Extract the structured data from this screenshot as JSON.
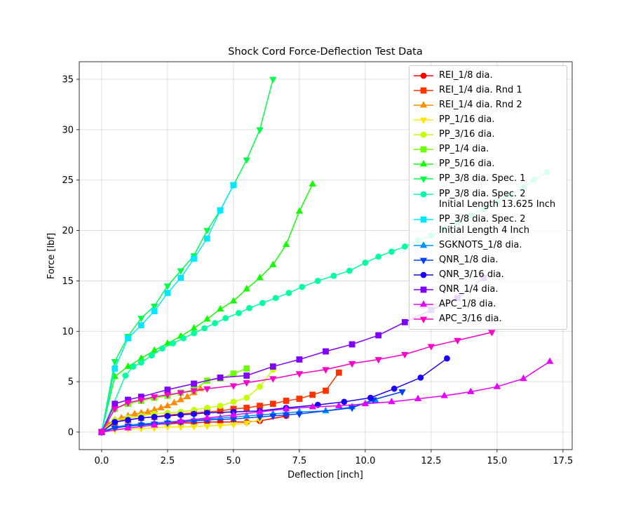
{
  "chart_data": {
    "type": "line",
    "title": "Shock Cord Force-Deflection Test Data",
    "x_label": "Deflection [inch]",
    "y_label": "Force [lbf]",
    "xlim": [
      -0.85,
      17.85
    ],
    "ylim": [
      -1.74,
      36.74
    ],
    "xticks": [
      {
        "value": 0,
        "label": "0.0"
      },
      {
        "value": 2.5,
        "label": "2.5"
      },
      {
        "value": 5,
        "label": "5.0"
      },
      {
        "value": 7.5,
        "label": "7.5"
      },
      {
        "value": 10,
        "label": "10.0"
      },
      {
        "value": 12.5,
        "label": "12.5"
      },
      {
        "value": 15,
        "label": "15.0"
      },
      {
        "value": 17.5,
        "label": "17.5"
      }
    ],
    "yticks": [
      0,
      5,
      10,
      15,
      20,
      25,
      30,
      35
    ],
    "grid": true,
    "legend": "upper right",
    "series": [
      {
        "name": "REI_1/8 dia.",
        "color": "#ff0000",
        "marker": "circle",
        "x": [
          0,
          0.5,
          1,
          1.5,
          2,
          2.5,
          3,
          3.5,
          4,
          4.5,
          5,
          5.5,
          6,
          7
        ],
        "values": [
          0,
          0.5,
          0.6,
          0.7,
          0.8,
          0.8,
          0.9,
          0.9,
          1.0,
          1.0,
          1.0,
          1.0,
          1.1,
          1.6
        ]
      },
      {
        "name": "REI_1/4 dia. Rnd 1",
        "color": "#ff3300",
        "marker": "square",
        "x": [
          0,
          0.5,
          1,
          1.5,
          2,
          2.5,
          3,
          3.5,
          4,
          4.5,
          5,
          5.5,
          6,
          6.5,
          7,
          7.5,
          8,
          8.5,
          9
        ],
        "values": [
          0,
          1.0,
          1.2,
          1.4,
          1.5,
          1.7,
          1.8,
          1.9,
          2.0,
          2.1,
          2.3,
          2.4,
          2.6,
          2.8,
          3.1,
          3.3,
          3.7,
          4.1,
          5.9
        ]
      },
      {
        "name": "REI_1/4 dia. Rnd 2",
        "color": "#ff8c00",
        "marker": "triangle-up",
        "x": [
          0,
          0.25,
          0.5,
          0.75,
          1,
          1.25,
          1.5,
          1.75,
          2,
          2.25,
          2.5,
          2.75,
          3,
          3.25,
          3.5,
          3.75
        ],
        "values": [
          0,
          0.8,
          1.2,
          1.4,
          1.6,
          1.8,
          1.9,
          2.0,
          2.2,
          2.4,
          2.6,
          2.9,
          3.2,
          3.5,
          3.9,
          4.3
        ]
      },
      {
        "name": "PP_1/16 dia.",
        "color": "#ffe600",
        "marker": "triangle-down",
        "x": [
          0,
          0.5,
          1,
          1.5,
          2,
          2.5,
          3,
          3.5,
          4,
          4.5,
          5,
          5.5,
          6
        ],
        "values": [
          0,
          0.2,
          0.3,
          0.35,
          0.4,
          0.5,
          0.5,
          0.55,
          0.6,
          0.65,
          0.75,
          0.9,
          1.2
        ]
      },
      {
        "name": "PP_3/16 dia.",
        "color": "#c4ff00",
        "marker": "circle",
        "x": [
          0,
          0.5,
          1,
          1.5,
          2,
          2.5,
          3,
          3.5,
          4,
          4.5,
          5,
          5.5,
          6,
          6.5
        ],
        "values": [
          0,
          1.2,
          1.4,
          1.6,
          1.8,
          1.9,
          2.0,
          2.2,
          2.4,
          2.6,
          3.0,
          3.4,
          4.5,
          6.2
        ]
      },
      {
        "name": "PP_1/4 dia.",
        "color": "#6bff00",
        "marker": "square",
        "x": [
          0,
          0.5,
          1,
          1.5,
          2,
          2.5,
          3,
          3.5,
          4,
          4.5,
          5,
          5.5
        ],
        "values": [
          0,
          2.3,
          2.8,
          3.1,
          3.4,
          3.6,
          3.9,
          4.2,
          5.1,
          5.3,
          5.8,
          6.3
        ]
      },
      {
        "name": "PP_5/16 dia.",
        "color": "#12ff00",
        "marker": "triangle-up",
        "x": [
          0,
          0.5,
          1,
          1.5,
          2,
          2.5,
          3,
          3.5,
          4,
          4.5,
          5,
          5.5,
          6,
          6.5,
          7,
          7.5,
          8
        ],
        "values": [
          0,
          5.5,
          6.5,
          7.3,
          8.1,
          8.8,
          9.5,
          10.3,
          11.2,
          12.2,
          13.0,
          14.2,
          15.3,
          16.6,
          18.6,
          21.9,
          24.6
        ]
      },
      {
        "name": "PP_3/8 dia. Spec. 1",
        "color": "#00ff46",
        "marker": "triangle-down",
        "x": [
          0,
          0.5,
          1,
          1.5,
          2,
          2.5,
          3,
          3.5,
          4,
          4.5,
          5,
          5.5,
          6,
          6.5
        ],
        "values": [
          0,
          7.0,
          9.5,
          11.3,
          12.5,
          14.5,
          16.0,
          17.5,
          20.0,
          22.0,
          24.5,
          27.0,
          30.0,
          35.0
        ]
      },
      {
        "name": "PP_3/8 dia. Spec. 2\nInitial Length 13.625 Inch",
        "color": "#00ffa0",
        "marker": "circle",
        "x": [
          0,
          0.9,
          1.2,
          1.5,
          1.9,
          2.3,
          2.7,
          3.1,
          3.5,
          3.9,
          4.3,
          4.7,
          5.2,
          5.6,
          6.1,
          6.6,
          7.1,
          7.6,
          8.2,
          8.8,
          9.4,
          10,
          10.5,
          11,
          11.5,
          12,
          12.5,
          13,
          13.5,
          14,
          14.5,
          15,
          15.5,
          16,
          16.4,
          16.9
        ],
        "values": [
          0,
          5.6,
          6.5,
          6.9,
          7.6,
          8.3,
          8.8,
          9.3,
          9.8,
          10.3,
          10.8,
          11.3,
          11.8,
          12.3,
          12.8,
          13.3,
          13.8,
          14.4,
          15.0,
          15.5,
          16.0,
          16.8,
          17.4,
          17.9,
          18.4,
          19.0,
          19.5,
          20.1,
          20.8,
          21.5,
          22.1,
          22.8,
          23.5,
          24.3,
          25.0,
          25.8
        ]
      },
      {
        "name": "PP_3/8 dia. Spec. 2\nInitial Length 4 Inch",
        "color": "#00e8ff",
        "marker": "square",
        "x": [
          0,
          0.5,
          1,
          1.5,
          2,
          2.5,
          3,
          3.5,
          4,
          4.5,
          5
        ],
        "values": [
          0,
          6.3,
          9.3,
          10.6,
          12.0,
          13.8,
          15.3,
          17.2,
          19.2,
          22.0,
          24.5
        ]
      },
      {
        "name": "SGKNOTS_1/8 dia.",
        "color": "#0090ff",
        "marker": "triangle-up",
        "x": [
          0,
          0.5,
          1,
          1.5,
          2,
          2.5,
          3,
          3.5,
          4,
          4.5,
          5,
          5.5,
          6,
          6.5,
          7,
          7.5,
          8.5,
          9.5,
          10.4
        ],
        "values": [
          0,
          0.5,
          0.7,
          0.8,
          0.9,
          1.0,
          1.1,
          1.2,
          1.3,
          1.4,
          1.5,
          1.6,
          1.7,
          1.8,
          1.9,
          2.0,
          2.1,
          2.5,
          3.1
        ]
      },
      {
        "name": "QNR_1/8 dia.",
        "color": "#0040ff",
        "marker": "triangle-down",
        "x": [
          0,
          0.5,
          1,
          1.5,
          2,
          2.5,
          3,
          3.5,
          4,
          5,
          6,
          6.5,
          7,
          7.5,
          9.5,
          10.3,
          11.4
        ],
        "values": [
          0,
          0.4,
          0.6,
          0.7,
          0.8,
          0.9,
          1.0,
          1.1,
          1.2,
          1.3,
          1.5,
          1.6,
          1.7,
          1.8,
          2.4,
          3.2,
          4.0
        ]
      },
      {
        "name": "QNR_3/16 dia.",
        "color": "#1a00ff",
        "marker": "circle",
        "x": [
          0,
          0.5,
          1,
          1.5,
          2,
          2.5,
          3,
          3.5,
          4,
          5,
          6,
          7,
          8.2,
          9.2,
          10.2,
          11.1,
          12.1,
          13.1
        ],
        "values": [
          0,
          1.0,
          1.2,
          1.4,
          1.5,
          1.6,
          1.7,
          1.8,
          1.9,
          2.0,
          2.1,
          2.4,
          2.7,
          3.0,
          3.4,
          4.3,
          5.4,
          7.3
        ]
      },
      {
        "name": "QNR_1/4 dia.",
        "color": "#8000ff",
        "marker": "square",
        "x": [
          0,
          0.5,
          1,
          1.5,
          2.5,
          3.5,
          4.5,
          5.5,
          6.5,
          7.5,
          8.5,
          9.5,
          10.5,
          11.5,
          12.5,
          13.5,
          14.5
        ],
        "values": [
          0,
          2.8,
          3.2,
          3.5,
          4.2,
          4.8,
          5.4,
          5.6,
          6.5,
          7.2,
          8.0,
          8.7,
          9.6,
          10.9,
          12.1,
          13.3,
          15.3
        ]
      },
      {
        "name": "APC_1/8 dia.",
        "color": "#e600ff",
        "marker": "triangle-up",
        "x": [
          0,
          1,
          2,
          3,
          4,
          5,
          6,
          7,
          8,
          9,
          10,
          11,
          12,
          13,
          14,
          15,
          16,
          17
        ],
        "values": [
          0,
          0.4,
          0.7,
          1.1,
          1.4,
          1.7,
          2.0,
          2.3,
          2.5,
          2.6,
          2.8,
          3.0,
          3.3,
          3.6,
          4.0,
          4.5,
          5.3,
          7.0
        ]
      },
      {
        "name": "APC_3/16 dia.",
        "color": "#ff00c8",
        "marker": "triangle-down",
        "x": [
          0,
          0.5,
          1,
          1.5,
          2,
          2.5,
          3,
          3.5,
          4,
          5,
          5.5,
          6.5,
          7.5,
          8.5,
          9.5,
          10.5,
          11.5,
          12.5,
          13.5,
          14.8
        ],
        "values": [
          0,
          2.3,
          2.9,
          3.2,
          3.5,
          3.7,
          3.9,
          4.1,
          4.3,
          4.6,
          4.9,
          5.3,
          5.8,
          6.2,
          6.8,
          7.2,
          7.7,
          8.5,
          9.1,
          9.9
        ]
      }
    ]
  }
}
